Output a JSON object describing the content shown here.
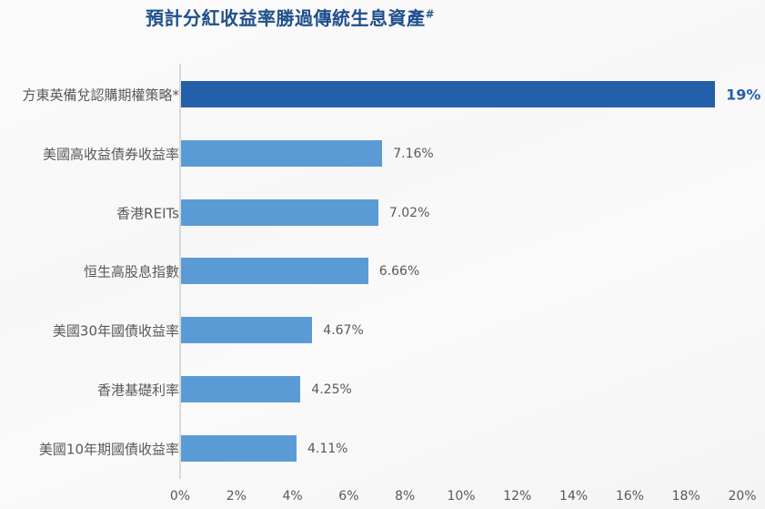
{
  "chart_data": {
    "type": "bar",
    "orientation": "horizontal",
    "title": "預計分紅收益率勝過傳統生息資產",
    "title_suffix": "#",
    "xlabel": "",
    "ylabel": "",
    "xlim": [
      0,
      20
    ],
    "grid": false,
    "legend": null,
    "categories": [
      "方東英備兌認購期權策略*",
      "美國高收益債券收益率",
      "香港REITs",
      "恒生高股息指數",
      "美國30年國債收益率",
      "香港基礎利率",
      "美國10年期國債收益率"
    ],
    "values": [
      19,
      7.16,
      7.02,
      6.66,
      4.67,
      4.25,
      4.11
    ],
    "value_labels": [
      "19%",
      "7.16%",
      "7.02%",
      "6.66%",
      "4.67%",
      "4.25%",
      "4.11%"
    ],
    "x_ticks": [
      "0%",
      "2%",
      "4%",
      "6%",
      "8%",
      "10%",
      "12%",
      "14%",
      "16%",
      "18%",
      "20%"
    ],
    "colors": {
      "highlight_bar": "#2460a7",
      "default_bar": "#5b9bd5",
      "title": "#1f4e8c",
      "axis_text": "#595959"
    }
  }
}
